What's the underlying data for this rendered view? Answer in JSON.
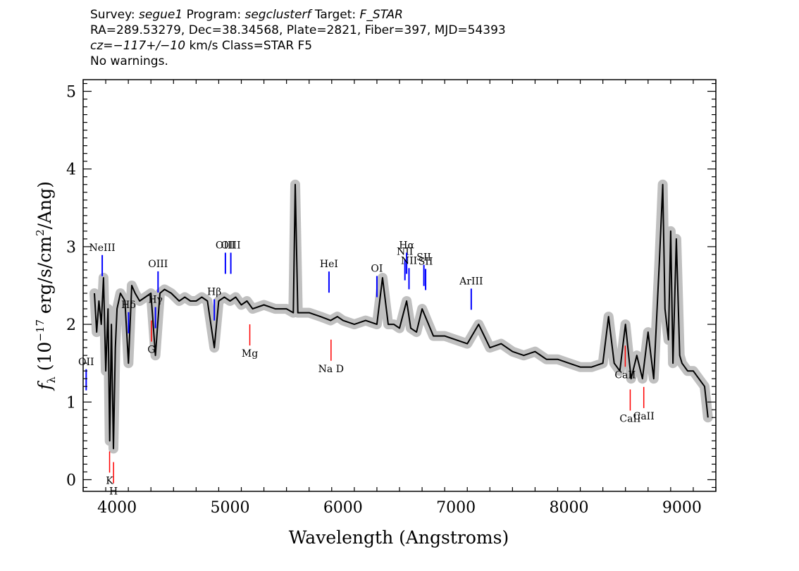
{
  "header": {
    "line1": {
      "survey_label": "Survey:",
      "survey": "segue1",
      "program_label": "Program:",
      "program": "segclusterf",
      "target_label": "Target:",
      "target": "F_STAR"
    },
    "line2": "RA=289.53279, Dec=38.34568, Plate=2821, Fiber=397, MJD=54393",
    "line3": {
      "cz_label": "cz=",
      "cz": "−117+/−10",
      "rest": " km/s Class=STAR F5"
    },
    "line4": "No warnings."
  },
  "chart_data": {
    "type": "line",
    "xlabel": "Wavelength (Angstroms)",
    "ylabel": "f_λ (10^-17 erg/s/cm^2/Ang)",
    "xlim": [
      3700,
      9300
    ],
    "ylim": [
      -0.15,
      5.15
    ],
    "x_ticks": [
      4000,
      5000,
      6000,
      7000,
      8000,
      9000
    ],
    "y_ticks": [
      0,
      1,
      2,
      3,
      4,
      5
    ],
    "grid": false,
    "colors": {
      "spectrum": "#000000",
      "error": "#c0c0c0",
      "emission": "#0000ff",
      "absorption": "#ff0000"
    },
    "series": [
      {
        "x": [
          3800,
          3820,
          3840,
          3860,
          3880,
          3900,
          3920,
          3935,
          3950,
          3968,
          3985,
          4000,
          4030,
          4070,
          4101,
          4130,
          4160,
          4200,
          4250,
          4300,
          4340,
          4380,
          4420,
          4480,
          4550,
          4600,
          4650,
          4700,
          4750,
          4800,
          4861,
          4900,
          4950,
          5000,
          5050,
          5100,
          5150,
          5200,
          5300,
          5400,
          5500,
          5560,
          5577,
          5600,
          5700,
          5800,
          5890,
          5950,
          6000,
          6100,
          6200,
          6300,
          6350,
          6400,
          6450,
          6500,
          6563,
          6600,
          6650,
          6700,
          6800,
          6900,
          7000,
          7100,
          7200,
          7300,
          7400,
          7500,
          7600,
          7700,
          7800,
          7900,
          8000,
          8100,
          8200,
          8300,
          8350,
          8400,
          8450,
          8500,
          8550,
          8600,
          8650,
          8700,
          8750,
          8800,
          8830,
          8850,
          8880,
          8900,
          8920,
          8950,
          8980,
          9000,
          9050,
          9100,
          9150,
          9200,
          9230
        ],
        "y": [
          2.4,
          1.9,
          2.3,
          2.0,
          2.6,
          1.4,
          2.2,
          0.5,
          2.0,
          0.4,
          1.7,
          2.2,
          2.4,
          2.3,
          1.5,
          2.5,
          2.4,
          2.3,
          2.35,
          2.4,
          1.6,
          2.4,
          2.45,
          2.4,
          2.3,
          2.35,
          2.3,
          2.3,
          2.35,
          2.3,
          1.7,
          2.3,
          2.35,
          2.3,
          2.35,
          2.25,
          2.3,
          2.2,
          2.25,
          2.2,
          2.2,
          2.15,
          3.8,
          2.15,
          2.15,
          2.1,
          2.05,
          2.1,
          2.05,
          2.0,
          2.05,
          2.0,
          2.6,
          2.0,
          2.0,
          1.95,
          2.3,
          1.95,
          1.9,
          2.2,
          1.85,
          1.85,
          1.8,
          1.75,
          2.0,
          1.7,
          1.75,
          1.65,
          1.6,
          1.65,
          1.55,
          1.55,
          1.5,
          1.45,
          1.45,
          1.5,
          2.1,
          1.5,
          1.4,
          2.0,
          1.3,
          1.6,
          1.3,
          1.9,
          1.3,
          2.8,
          3.8,
          2.2,
          1.8,
          3.2,
          1.5,
          3.1,
          1.6,
          1.5,
          1.4,
          1.4,
          1.3,
          1.2,
          0.8
        ]
      }
    ],
    "emission_lines": [
      {
        "label": "OII",
        "x": 3727
      },
      {
        "label": "NeIII",
        "x": 3869
      },
      {
        "label": "Hδ",
        "x": 4102
      },
      {
        "label": "Hγ",
        "x": 4340
      },
      {
        "label": "OIII",
        "x": 4363
      },
      {
        "label": "Hβ",
        "x": 4861
      },
      {
        "label": "OIII",
        "x": 4959
      },
      {
        "label": "OIII",
        "x": 5007
      },
      {
        "label": "HeI",
        "x": 5876
      },
      {
        "label": "OI",
        "x": 6300
      },
      {
        "label": "NII",
        "x": 6548
      },
      {
        "label": "Hα",
        "x": 6563
      },
      {
        "label": "NII",
        "x": 6584
      },
      {
        "label": "SII",
        "x": 6716
      },
      {
        "label": "SII",
        "x": 6731
      },
      {
        "label": "ArIII",
        "x": 7135
      }
    ],
    "absorption_lines": [
      {
        "label": "K",
        "x": 3934
      },
      {
        "label": "H",
        "x": 3969
      },
      {
        "label": "G",
        "x": 4305
      },
      {
        "label": "Mg",
        "x": 5175
      },
      {
        "label": "Na D",
        "x": 5894
      },
      {
        "label": "CaII",
        "x": 8498
      },
      {
        "label": "CaII",
        "x": 8542
      },
      {
        "label": "CaII",
        "x": 8662
      }
    ]
  }
}
